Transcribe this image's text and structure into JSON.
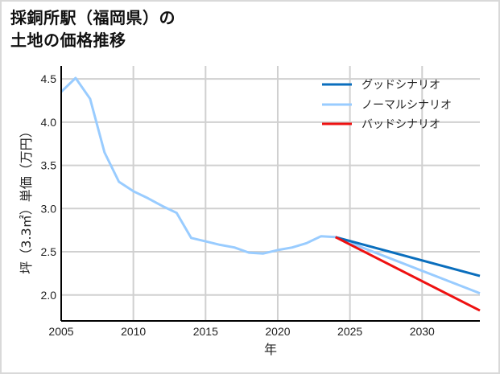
{
  "title": {
    "line1": "採銅所駅（福岡県）の",
    "line2": "土地の価格推移"
  },
  "chart_data": {
    "type": "line",
    "title": "採銅所駅（福岡県）の土地の価格推移",
    "xlabel": "年",
    "ylabel": "坪（3.3㎡）単価（万円）",
    "xlim": [
      2005,
      2034
    ],
    "ylim": [
      1.7,
      4.65
    ],
    "x_ticks": [
      "2005",
      "2010",
      "2015",
      "2020",
      "2025",
      "2030"
    ],
    "y_ticks": [
      "2.0",
      "2.5",
      "3.0",
      "3.5",
      "4.0",
      "4.5"
    ],
    "grid": true,
    "legend_position": "upper right",
    "series": [
      {
        "name": "グッドシナリオ",
        "color": "#0a6ebd",
        "x": [
          2024,
          2034
        ],
        "values": [
          2.67,
          2.22
        ]
      },
      {
        "name": "ノーマルシナリオ",
        "color": "#99ccff",
        "x": [
          2005,
          2006,
          2007,
          2008,
          2009,
          2010,
          2011,
          2012,
          2013,
          2014,
          2015,
          2016,
          2017,
          2018,
          2019,
          2020,
          2021,
          2022,
          2023,
          2024,
          2034
        ],
        "values": [
          4.35,
          4.51,
          4.27,
          3.65,
          3.31,
          3.2,
          3.12,
          3.03,
          2.95,
          2.66,
          2.62,
          2.58,
          2.55,
          2.49,
          2.48,
          2.52,
          2.55,
          2.6,
          2.68,
          2.67,
          2.02
        ]
      },
      {
        "name": "バッドシナリオ",
        "color": "#ee1111",
        "x": [
          2024,
          2034
        ],
        "values": [
          2.67,
          1.82
        ]
      }
    ]
  },
  "legend": {
    "good": "グッドシナリオ",
    "normal": "ノーマルシナリオ",
    "bad": "バッドシナリオ"
  }
}
